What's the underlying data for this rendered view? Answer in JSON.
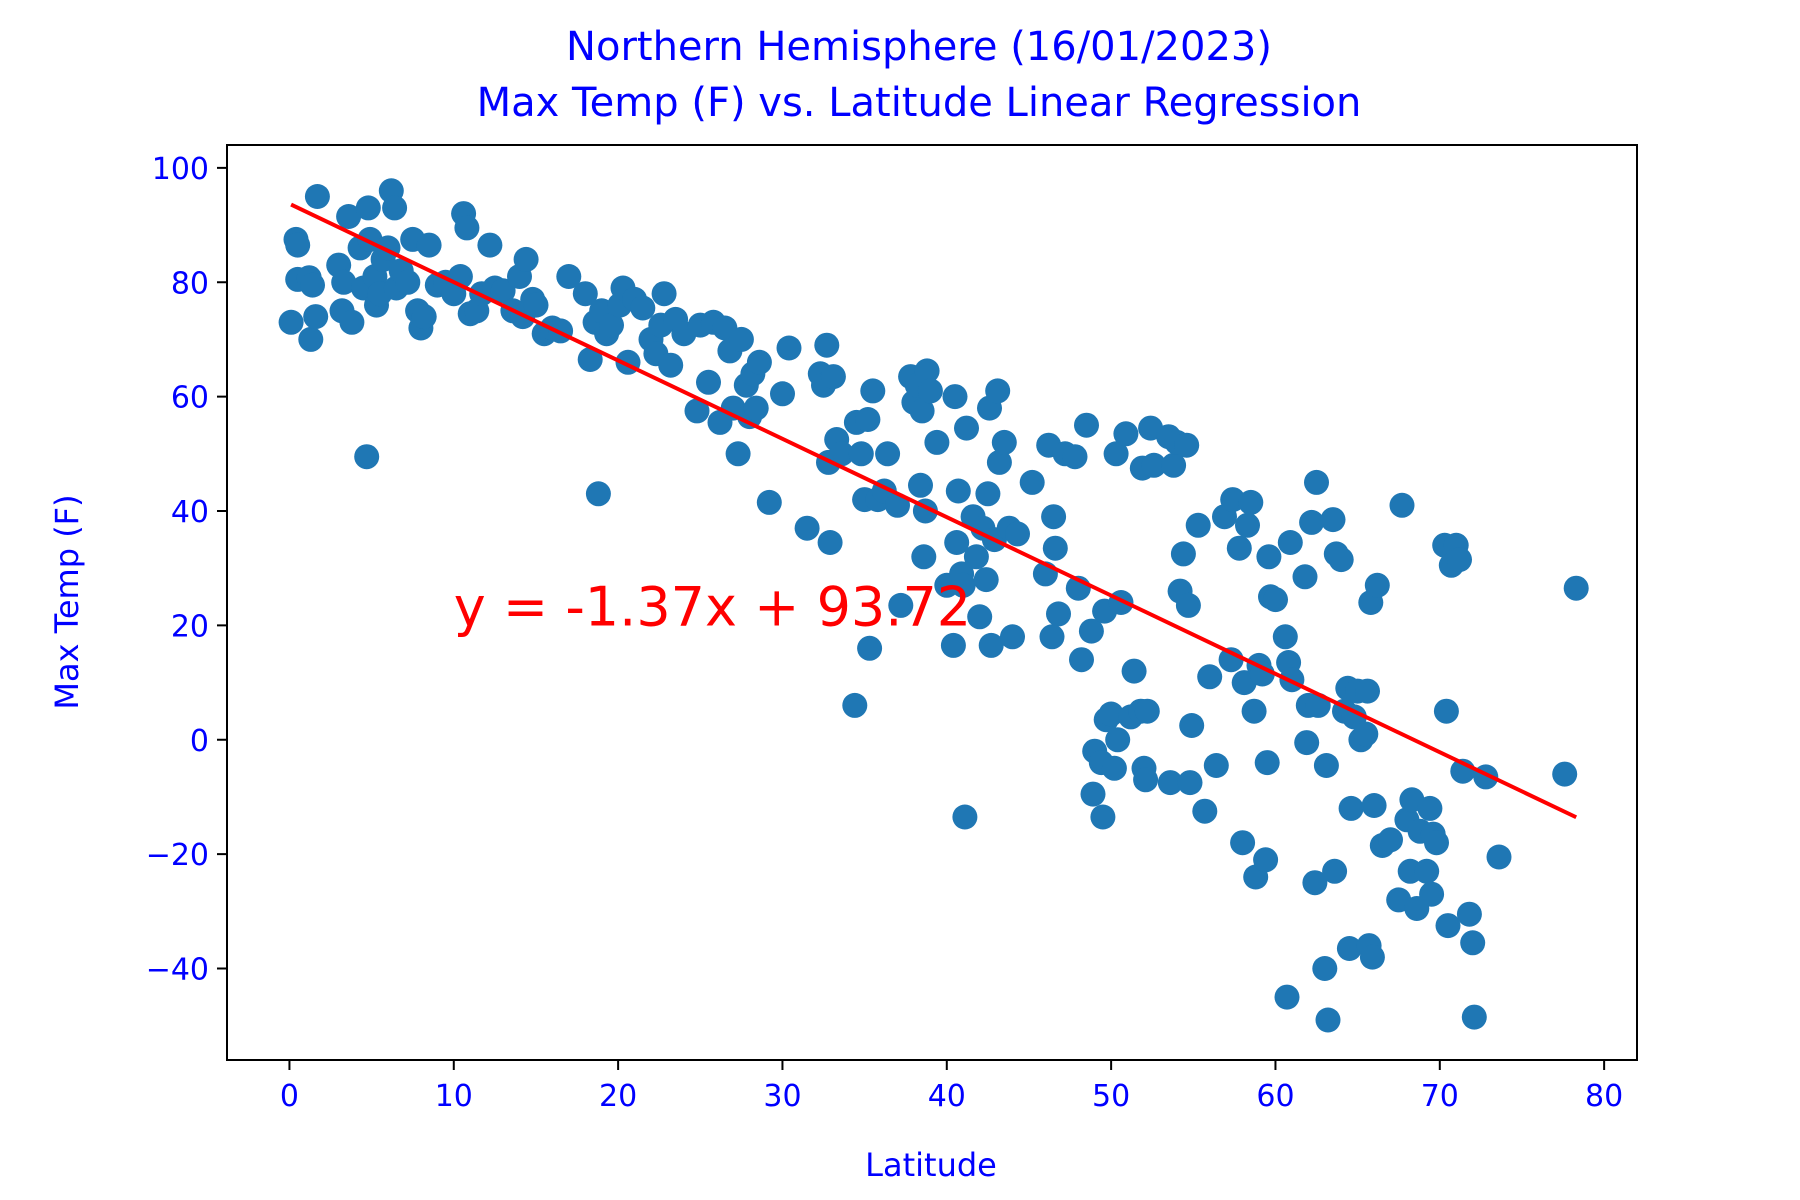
{
  "chart_data": {
    "type": "scatter",
    "title_line1": "Northern Hemisphere (16/01/2023)",
    "title_line2": "Max Temp (F) vs. Latitude Linear Regression",
    "xlabel": "Latitude",
    "ylabel": "Max Temp (F)",
    "xlim": [
      -3.8,
      82
    ],
    "ylim": [
      -56,
      104
    ],
    "xticks": [
      0,
      10,
      20,
      30,
      40,
      50,
      60,
      70,
      80
    ],
    "yticks": [
      -40,
      -20,
      0,
      20,
      40,
      60,
      80,
      100
    ],
    "grid": false,
    "text_color": "#0000ff",
    "marker_color": "#1f77b4",
    "regression": {
      "slope": -1.37,
      "intercept": 93.72,
      "x_range": [
        0.1,
        78.3
      ],
      "color": "#ff0000",
      "equation": "y = -1.37x + 93.72",
      "equation_position": [
        10,
        20
      ]
    },
    "points": [
      [
        0.1,
        73
      ],
      [
        0.4,
        87.5
      ],
      [
        0.5,
        86.5
      ],
      [
        0.5,
        80.5
      ],
      [
        1.2,
        80.8
      ],
      [
        1.3,
        70
      ],
      [
        1.4,
        79.5
      ],
      [
        1.6,
        74
      ],
      [
        1.7,
        95
      ],
      [
        3.0,
        83
      ],
      [
        3.2,
        75
      ],
      [
        3.3,
        80
      ],
      [
        3.6,
        91.5
      ],
      [
        3.8,
        73
      ],
      [
        4.3,
        86
      ],
      [
        4.5,
        79
      ],
      [
        4.7,
        49.5
      ],
      [
        4.8,
        93
      ],
      [
        4.9,
        87.5
      ],
      [
        5.2,
        81
      ],
      [
        5.3,
        76
      ],
      [
        5.5,
        78
      ],
      [
        5.7,
        84
      ],
      [
        6.0,
        86
      ],
      [
        6.2,
        96
      ],
      [
        6.4,
        93
      ],
      [
        6.5,
        79
      ],
      [
        6.8,
        82
      ],
      [
        7.2,
        80
      ],
      [
        7.5,
        87.5
      ],
      [
        7.8,
        75
      ],
      [
        8.0,
        72
      ],
      [
        8.2,
        74
      ],
      [
        8.5,
        86.5
      ],
      [
        9.0,
        79.5
      ],
      [
        9.5,
        80
      ],
      [
        10.0,
        78
      ],
      [
        10.4,
        81
      ],
      [
        10.6,
        92
      ],
      [
        10.8,
        89.5
      ],
      [
        11.0,
        74.5
      ],
      [
        11.4,
        75
      ],
      [
        11.7,
        78
      ],
      [
        12.2,
        86.5
      ],
      [
        12.5,
        79
      ],
      [
        13.0,
        78.5
      ],
      [
        13.6,
        75
      ],
      [
        14.0,
        81
      ],
      [
        14.2,
        74
      ],
      [
        14.4,
        84
      ],
      [
        14.8,
        77
      ],
      [
        15.0,
        76
      ],
      [
        15.5,
        71
      ],
      [
        16.0,
        72
      ],
      [
        16.5,
        71.5
      ],
      [
        17.0,
        81
      ],
      [
        18.0,
        78
      ],
      [
        18.3,
        66.5
      ],
      [
        18.6,
        73
      ],
      [
        18.8,
        43
      ],
      [
        19.0,
        75
      ],
      [
        19.3,
        71
      ],
      [
        19.6,
        72.5
      ],
      [
        20.1,
        76
      ],
      [
        20.3,
        79
      ],
      [
        20.6,
        66
      ],
      [
        21.0,
        77
      ],
      [
        21.5,
        75.5
      ],
      [
        22.0,
        70
      ],
      [
        22.3,
        67.5
      ],
      [
        22.6,
        72.5
      ],
      [
        22.8,
        78
      ],
      [
        23.2,
        65.5
      ],
      [
        23.5,
        73.5
      ],
      [
        24.0,
        71
      ],
      [
        24.8,
        57.5
      ],
      [
        25.0,
        72.5
      ],
      [
        25.5,
        62.5
      ],
      [
        25.8,
        73
      ],
      [
        26.2,
        55.5
      ],
      [
        26.5,
        72
      ],
      [
        26.8,
        68
      ],
      [
        27.0,
        58
      ],
      [
        27.3,
        50
      ],
      [
        27.5,
        70
      ],
      [
        27.8,
        62
      ],
      [
        28.0,
        56.5
      ],
      [
        28.2,
        64
      ],
      [
        28.4,
        58
      ],
      [
        28.6,
        66
      ],
      [
        29.2,
        41.5
      ],
      [
        30.0,
        60.5
      ],
      [
        30.4,
        68.5
      ],
      [
        31.5,
        37
      ],
      [
        32.3,
        64
      ],
      [
        32.5,
        62
      ],
      [
        32.7,
        69
      ],
      [
        32.8,
        48.5
      ],
      [
        32.9,
        34.5
      ],
      [
        33.1,
        63.5
      ],
      [
        33.3,
        52.5
      ],
      [
        33.6,
        50
      ],
      [
        34.4,
        6
      ],
      [
        34.5,
        55.5
      ],
      [
        34.8,
        50
      ],
      [
        35.0,
        42
      ],
      [
        35.2,
        56
      ],
      [
        35.3,
        16
      ],
      [
        35.5,
        61
      ],
      [
        35.8,
        42
      ],
      [
        36.2,
        43.5
      ],
      [
        36.4,
        50
      ],
      [
        37.0,
        41
      ],
      [
        37.2,
        23.5
      ],
      [
        37.8,
        63.5
      ],
      [
        38.0,
        59
      ],
      [
        38.2,
        62
      ],
      [
        38.4,
        44.5
      ],
      [
        38.5,
        57.5
      ],
      [
        38.6,
        32
      ],
      [
        38.7,
        40
      ],
      [
        38.8,
        64.5
      ],
      [
        39.0,
        61
      ],
      [
        39.4,
        52
      ],
      [
        40.0,
        27
      ],
      [
        40.4,
        16.5
      ],
      [
        40.5,
        60
      ],
      [
        40.6,
        34.5
      ],
      [
        40.7,
        43.5
      ],
      [
        40.9,
        29
      ],
      [
        41.0,
        27
      ],
      [
        41.1,
        -13.5
      ],
      [
        41.2,
        54.5
      ],
      [
        41.6,
        39
      ],
      [
        41.8,
        32
      ],
      [
        42.0,
        21.5
      ],
      [
        42.2,
        37
      ],
      [
        42.4,
        28
      ],
      [
        42.5,
        43
      ],
      [
        42.6,
        58
      ],
      [
        42.7,
        16.5
      ],
      [
        42.9,
        35
      ],
      [
        43.1,
        61
      ],
      [
        43.2,
        48.5
      ],
      [
        43.5,
        52
      ],
      [
        43.8,
        37
      ],
      [
        44.0,
        18
      ],
      [
        44.3,
        36
      ],
      [
        45.2,
        45
      ],
      [
        46.0,
        29
      ],
      [
        46.2,
        51.5
      ],
      [
        46.4,
        18
      ],
      [
        46.5,
        39
      ],
      [
        46.6,
        33.5
      ],
      [
        46.8,
        22
      ],
      [
        47.2,
        50
      ],
      [
        47.8,
        49.5
      ],
      [
        48.0,
        26.5
      ],
      [
        48.2,
        14
      ],
      [
        48.5,
        55
      ],
      [
        48.8,
        19
      ],
      [
        48.9,
        -9.5
      ],
      [
        49.0,
        -2
      ],
      [
        49.4,
        -4
      ],
      [
        49.5,
        -13.5
      ],
      [
        49.6,
        22.5
      ],
      [
        49.7,
        3.5
      ],
      [
        50.0,
        4.5
      ],
      [
        50.2,
        -5
      ],
      [
        50.3,
        50
      ],
      [
        50.4,
        0
      ],
      [
        50.6,
        24
      ],
      [
        50.9,
        53.5
      ],
      [
        51.2,
        4
      ],
      [
        51.4,
        12
      ],
      [
        51.8,
        5
      ],
      [
        51.9,
        47.5
      ],
      [
        52.0,
        -5
      ],
      [
        52.1,
        -7
      ],
      [
        52.2,
        5
      ],
      [
        52.4,
        54.5
      ],
      [
        52.6,
        48
      ],
      [
        53.5,
        53
      ],
      [
        53.6,
        -7.5
      ],
      [
        53.8,
        48
      ],
      [
        54.0,
        52
      ],
      [
        54.2,
        26
      ],
      [
        54.4,
        32.5
      ],
      [
        54.6,
        51.5
      ],
      [
        54.7,
        23.5
      ],
      [
        54.8,
        -7.5
      ],
      [
        54.9,
        2.5
      ],
      [
        55.3,
        37.5
      ],
      [
        55.7,
        -12.5
      ],
      [
        56.0,
        11
      ],
      [
        56.4,
        -4.5
      ],
      [
        56.9,
        39
      ],
      [
        57.3,
        14
      ],
      [
        57.4,
        42
      ],
      [
        57.8,
        33.5
      ],
      [
        58.0,
        -18
      ],
      [
        58.1,
        10
      ],
      [
        58.3,
        37.5
      ],
      [
        58.5,
        41.5
      ],
      [
        58.7,
        5
      ],
      [
        58.8,
        -24
      ],
      [
        59.0,
        13
      ],
      [
        59.2,
        11.5
      ],
      [
        59.4,
        -21
      ],
      [
        59.5,
        -4
      ],
      [
        59.6,
        32
      ],
      [
        59.7,
        25
      ],
      [
        60.0,
        24.5
      ],
      [
        60.6,
        18
      ],
      [
        60.7,
        -45
      ],
      [
        60.8,
        13.5
      ],
      [
        60.9,
        34.5
      ],
      [
        61.0,
        10.5
      ],
      [
        61.8,
        28.5
      ],
      [
        61.9,
        -0.5
      ],
      [
        62.0,
        6
      ],
      [
        62.2,
        38
      ],
      [
        62.4,
        -25
      ],
      [
        62.5,
        45
      ],
      [
        62.6,
        6
      ],
      [
        63.0,
        -40
      ],
      [
        63.1,
        -4.5
      ],
      [
        63.2,
        -49
      ],
      [
        63.5,
        38.5
      ],
      [
        63.6,
        -23
      ],
      [
        63.7,
        32.5
      ],
      [
        64.0,
        31.5
      ],
      [
        64.2,
        5
      ],
      [
        64.4,
        9
      ],
      [
        64.5,
        -36.5
      ],
      [
        64.6,
        -12
      ],
      [
        64.8,
        4
      ],
      [
        65.0,
        8.5
      ],
      [
        65.2,
        0
      ],
      [
        65.5,
        1
      ],
      [
        65.6,
        8.5
      ],
      [
        65.7,
        -36
      ],
      [
        65.8,
        24
      ],
      [
        65.9,
        -38
      ],
      [
        66.0,
        -11.5
      ],
      [
        66.2,
        27
      ],
      [
        66.5,
        -18.5
      ],
      [
        67.0,
        -17.5
      ],
      [
        67.5,
        -28
      ],
      [
        67.7,
        41
      ],
      [
        68.0,
        -14
      ],
      [
        68.2,
        -23
      ],
      [
        68.3,
        -10.5
      ],
      [
        68.6,
        -29.5
      ],
      [
        68.8,
        -16
      ],
      [
        69.2,
        -23
      ],
      [
        69.4,
        -12
      ],
      [
        69.5,
        -27
      ],
      [
        69.6,
        -16.5
      ],
      [
        69.8,
        -18
      ],
      [
        70.3,
        34
      ],
      [
        70.4,
        5
      ],
      [
        70.5,
        -32.5
      ],
      [
        70.7,
        30.5
      ],
      [
        71.0,
        34
      ],
      [
        71.2,
        31.5
      ],
      [
        71.4,
        -5.5
      ],
      [
        71.8,
        -30.5
      ],
      [
        72.0,
        -35.5
      ],
      [
        72.1,
        -48.5
      ],
      [
        72.8,
        -6.5
      ],
      [
        73.6,
        -20.5
      ],
      [
        77.6,
        -6
      ],
      [
        78.3,
        26.5
      ]
    ]
  }
}
